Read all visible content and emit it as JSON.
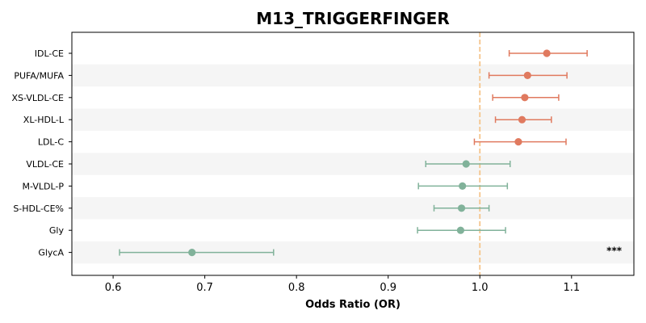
{
  "chart_data": {
    "type": "forest",
    "title": "M13_TRIGGERFINGER",
    "xlabel": "Odds Ratio (OR)",
    "xlim": [
      0.555,
      1.168
    ],
    "xticks": [
      "0.6",
      "0.7",
      "0.8",
      "0.9",
      "1.0",
      "1.1"
    ],
    "xtick_values": [
      0.6,
      0.7,
      0.8,
      0.9,
      1.0,
      1.1
    ],
    "reference_line": 1.0,
    "reference_color": "#f5c48a",
    "stripe_color": "#f5f5f5",
    "colors": {
      "up": "#e07a5f",
      "down": "#81b29a"
    },
    "rows": [
      {
        "label": "IDL-CE",
        "or": 1.073,
        "lo": 1.032,
        "hi": 1.117,
        "dir": "up"
      },
      {
        "label": "PUFA/MUFA",
        "or": 1.052,
        "lo": 1.01,
        "hi": 1.095,
        "dir": "up"
      },
      {
        "label": "XS-VLDL-CE",
        "or": 1.049,
        "lo": 1.014,
        "hi": 1.086,
        "dir": "up"
      },
      {
        "label": "XL-HDL-L",
        "or": 1.046,
        "lo": 1.017,
        "hi": 1.078,
        "dir": "up"
      },
      {
        "label": "LDL-C",
        "or": 1.042,
        "lo": 0.994,
        "hi": 1.094,
        "dir": "up"
      },
      {
        "label": "VLDL-CE",
        "or": 0.985,
        "lo": 0.941,
        "hi": 1.033,
        "dir": "down"
      },
      {
        "label": "M-VLDL-P",
        "or": 0.981,
        "lo": 0.933,
        "hi": 1.03,
        "dir": "down"
      },
      {
        "label": "S-HDL-CE%",
        "or": 0.98,
        "lo": 0.95,
        "hi": 1.01,
        "dir": "down"
      },
      {
        "label": "Gly",
        "or": 0.979,
        "lo": 0.932,
        "hi": 1.028,
        "dir": "down"
      },
      {
        "label": "GlycA",
        "or": 0.686,
        "lo": 0.607,
        "hi": 0.775,
        "dir": "down",
        "annotation": "***"
      }
    ]
  }
}
